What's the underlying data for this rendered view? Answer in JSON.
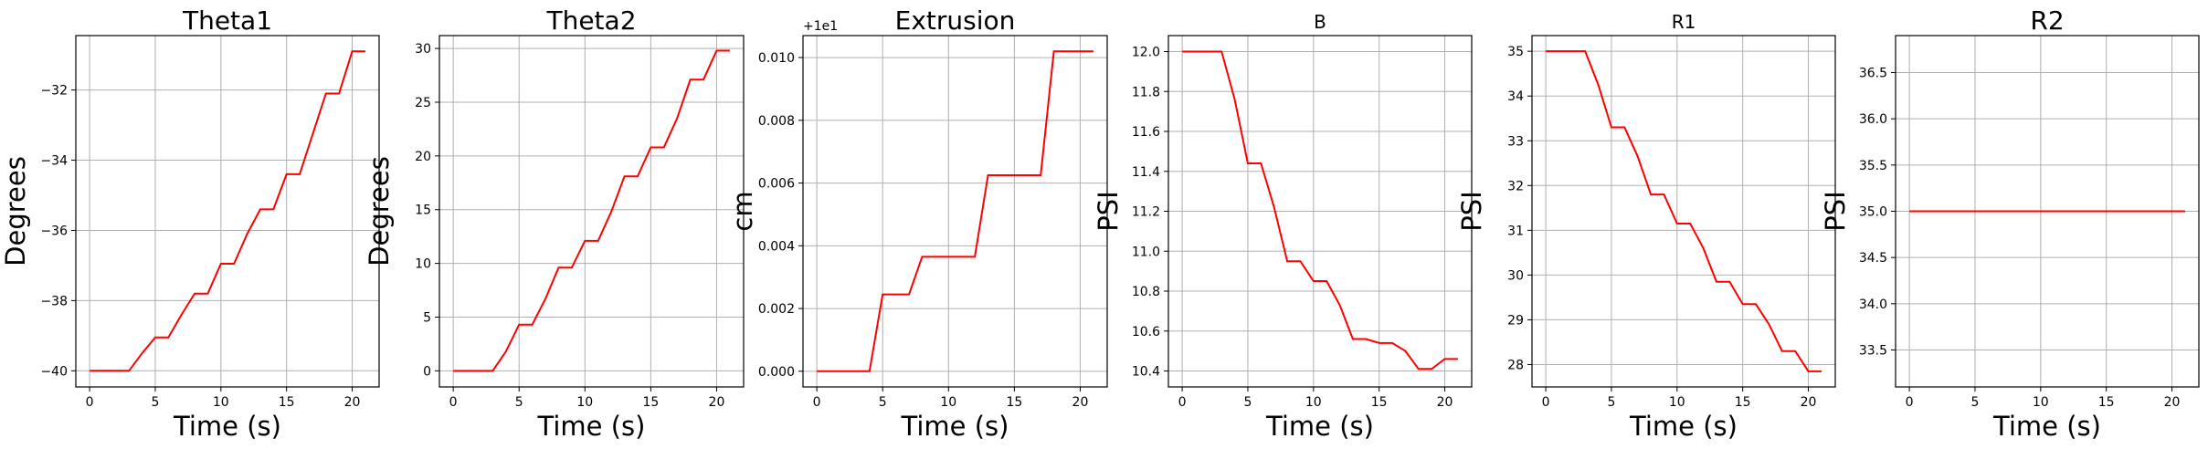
{
  "chart_data": [
    {
      "type": "line",
      "title": "Theta1",
      "xlabel": "Time (s)",
      "ylabel": "Degrees",
      "xlim": [
        -1.05,
        22.05
      ],
      "ylim": [
        -40.46,
        -30.45
      ],
      "xticks": [
        0,
        5,
        10,
        15,
        20
      ],
      "xtick_labels": [
        "0",
        "5",
        "10",
        "15",
        "20"
      ],
      "yticks": [
        -40,
        -38,
        -36,
        -34,
        -32
      ],
      "ytick_labels": [
        "−40",
        "−38",
        "−36",
        "−34",
        "−32"
      ],
      "offset_text": "",
      "grid": true,
      "color": "#ff0000",
      "x": [
        0,
        1,
        2,
        3,
        4,
        5,
        6,
        7,
        8,
        9,
        10,
        11,
        12,
        13,
        14,
        15,
        16,
        17,
        18,
        19,
        20,
        21
      ],
      "y": [
        -40,
        -40,
        -40,
        -40,
        -39.5,
        -39.05,
        -39.05,
        -38.4,
        -37.8,
        -37.8,
        -36.95,
        -36.95,
        -36.1,
        -35.4,
        -35.4,
        -34.4,
        -34.4,
        -33.25,
        -32.1,
        -32.1,
        -30.9,
        -30.9
      ]
    },
    {
      "type": "line",
      "title": "Theta2",
      "xlabel": "Time (s)",
      "ylabel": "Degrees",
      "xlim": [
        -1.05,
        22.05
      ],
      "ylim": [
        -1.5,
        31.2
      ],
      "xticks": [
        0,
        5,
        10,
        15,
        20
      ],
      "xtick_labels": [
        "0",
        "5",
        "10",
        "15",
        "20"
      ],
      "yticks": [
        0,
        5,
        10,
        15,
        20,
        25,
        30
      ],
      "ytick_labels": [
        "0",
        "5",
        "10",
        "15",
        "20",
        "25",
        "30"
      ],
      "offset_text": "",
      "grid": true,
      "color": "#ff0000",
      "x": [
        0,
        1,
        2,
        3,
        4,
        5,
        6,
        7,
        8,
        9,
        10,
        11,
        12,
        13,
        14,
        15,
        16,
        17,
        18,
        19,
        20,
        21
      ],
      "y": [
        0,
        0,
        0,
        0,
        1.8,
        4.3,
        4.3,
        6.7,
        9.6,
        9.6,
        12.1,
        12.1,
        14.8,
        18.1,
        18.1,
        20.8,
        20.8,
        23.5,
        27.1,
        27.1,
        29.8,
        29.8
      ]
    },
    {
      "type": "line",
      "title": "Extrusion",
      "xlabel": "Time (s)",
      "ylabel": "cm",
      "xlim": [
        -1.05,
        22.05
      ],
      "ylim": [
        -0.0005,
        0.0107
      ],
      "xticks": [
        0,
        5,
        10,
        15,
        20
      ],
      "xtick_labels": [
        "0",
        "5",
        "10",
        "15",
        "20"
      ],
      "yticks": [
        0,
        0.002,
        0.004,
        0.006,
        0.008,
        0.01
      ],
      "ytick_labels": [
        "0.000",
        "0.002",
        "0.004",
        "0.006",
        "0.008",
        "0.010"
      ],
      "offset_text": "+1e1",
      "grid": true,
      "color": "#ff0000",
      "x": [
        0,
        1,
        2,
        3,
        4,
        5,
        6,
        7,
        8,
        9,
        10,
        11,
        12,
        13,
        14,
        15,
        16,
        17,
        18,
        19,
        20,
        21
      ],
      "y": [
        0,
        0,
        0,
        0,
        0,
        0.00245,
        0.00245,
        0.00245,
        0.00365,
        0.00365,
        0.00365,
        0.00365,
        0.00365,
        0.00625,
        0.00625,
        0.00625,
        0.00625,
        0.00625,
        0.0102,
        0.0102,
        0.0102,
        0.0102
      ]
    },
    {
      "type": "line",
      "title": "B",
      "xlabel": "Time (s)",
      "ylabel": "PSI",
      "xlim": [
        -1.05,
        22.05
      ],
      "ylim": [
        10.32,
        12.08
      ],
      "xticks": [
        0,
        5,
        10,
        15,
        20
      ],
      "xtick_labels": [
        "0",
        "5",
        "10",
        "15",
        "20"
      ],
      "yticks": [
        10.4,
        10.6,
        10.8,
        11.0,
        11.2,
        11.4,
        11.6,
        11.8,
        12.0
      ],
      "ytick_labels": [
        "10.4",
        "10.6",
        "10.8",
        "11.0",
        "11.2",
        "11.4",
        "11.6",
        "11.8",
        "12.0"
      ],
      "offset_text": "",
      "grid": true,
      "color": "#ff0000",
      "x": [
        0,
        1,
        2,
        3,
        4,
        5,
        6,
        7,
        8,
        9,
        10,
        11,
        12,
        13,
        14,
        15,
        16,
        17,
        18,
        19,
        20,
        21
      ],
      "y": [
        12.0,
        12.0,
        12.0,
        12.0,
        11.76,
        11.44,
        11.44,
        11.22,
        10.95,
        10.95,
        10.85,
        10.85,
        10.73,
        10.56,
        10.56,
        10.54,
        10.54,
        10.5,
        10.41,
        10.41,
        10.46,
        10.46
      ]
    },
    {
      "type": "line",
      "title": "R1",
      "xlabel": "Time (s)",
      "ylabel": "PSI",
      "xlim": [
        -1.05,
        22.05
      ],
      "ylim": [
        27.5,
        35.35
      ],
      "xticks": [
        0,
        5,
        10,
        15,
        20
      ],
      "xtick_labels": [
        "0",
        "5",
        "10",
        "15",
        "20"
      ],
      "yticks": [
        28,
        29,
        30,
        31,
        32,
        33,
        34,
        35
      ],
      "ytick_labels": [
        "28",
        "29",
        "30",
        "31",
        "32",
        "33",
        "34",
        "35"
      ],
      "offset_text": "",
      "grid": true,
      "color": "#ff0000",
      "x": [
        0,
        1,
        2,
        3,
        4,
        5,
        6,
        7,
        8,
        9,
        10,
        11,
        12,
        13,
        14,
        15,
        16,
        17,
        18,
        19,
        20,
        21
      ],
      "y": [
        35,
        35,
        35,
        35,
        34.25,
        33.3,
        33.3,
        32.65,
        31.8,
        31.8,
        31.15,
        31.15,
        30.6,
        29.85,
        29.85,
        29.35,
        29.35,
        28.9,
        28.3,
        28.3,
        27.85,
        27.85
      ]
    },
    {
      "type": "line",
      "title": "R2",
      "xlabel": "Time (s)",
      "ylabel": "PSI",
      "xlim": [
        -1.05,
        22.05
      ],
      "ylim": [
        33.1,
        36.9
      ],
      "xticks": [
        0,
        5,
        10,
        15,
        20
      ],
      "xtick_labels": [
        "0",
        "5",
        "10",
        "15",
        "20"
      ],
      "yticks": [
        33.5,
        34.0,
        34.5,
        35.0,
        35.5,
        36.0,
        36.5
      ],
      "ytick_labels": [
        "33.5",
        "34.0",
        "34.5",
        "35.0",
        "35.5",
        "36.0",
        "36.5"
      ],
      "offset_text": "",
      "grid": true,
      "color": "#ff0000",
      "x": [
        0,
        1,
        2,
        3,
        4,
        5,
        6,
        7,
        8,
        9,
        10,
        11,
        12,
        13,
        14,
        15,
        16,
        17,
        18,
        19,
        20,
        21
      ],
      "y": [
        35,
        35,
        35,
        35,
        35,
        35,
        35,
        35,
        35,
        35,
        35,
        35,
        35,
        35,
        35,
        35,
        35,
        35,
        35,
        35,
        35,
        35
      ]
    }
  ]
}
